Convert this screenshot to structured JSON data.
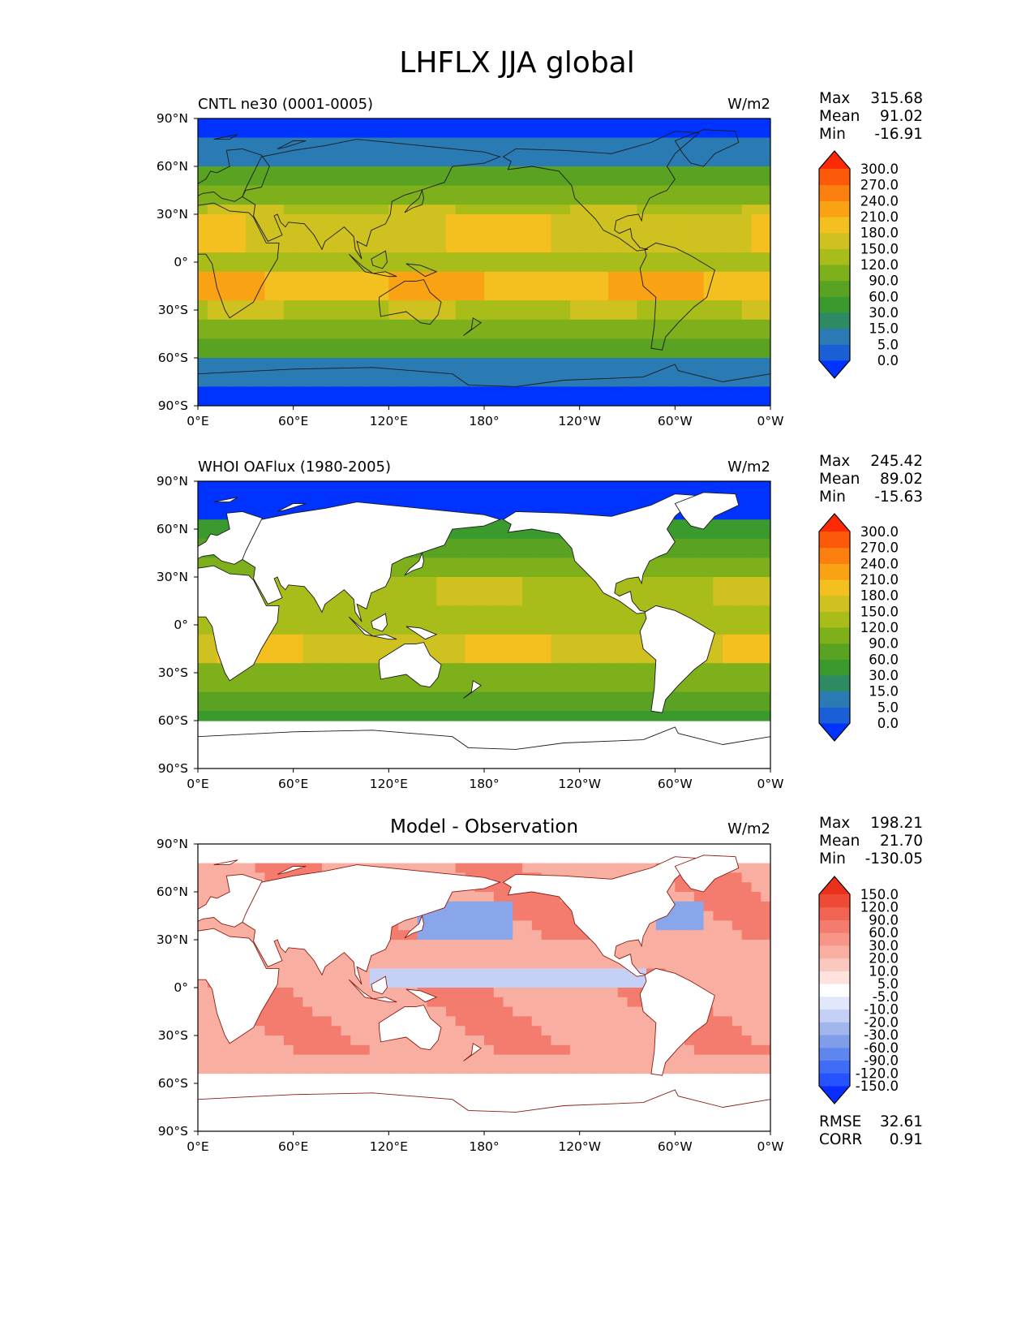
{
  "figure": {
    "title": "LHFLX JJA global"
  },
  "axes": {
    "lon_ticks": [
      "0°E",
      "60°E",
      "120°E",
      "180°",
      "120°W",
      "60°W",
      "0°W"
    ],
    "lat_ticks": [
      "90°N",
      "60°N",
      "30°N",
      "0°",
      "30°S",
      "60°S",
      "90°S"
    ]
  },
  "panels": [
    {
      "title_left": "CNTL ne30 (0001-0005)",
      "title_center": "",
      "units": "W/m2",
      "stats": [
        {
          "label": "Max",
          "value": "315.68"
        },
        {
          "label": "Mean",
          "value": "91.02"
        },
        {
          "label": "Min",
          "value": "-16.91"
        }
      ],
      "colorbar": {
        "labels": [
          "300.0",
          "270.0",
          "240.0",
          "210.0",
          "180.0",
          "150.0",
          "120.0",
          "90.0",
          "60.0",
          "30.0",
          "15.0",
          "5.0",
          "0.0"
        ],
        "colors": [
          "#0033ff",
          "#1a5fd6",
          "#2a7ab3",
          "#2e8a63",
          "#3a9a2e",
          "#5aa322",
          "#7eb01c",
          "#a8bc1a",
          "#cfc11f",
          "#f4c020",
          "#f8a214",
          "#fb8010",
          "#fc5a0a",
          "#fd2a05"
        ]
      }
    },
    {
      "title_left": "WHOI OAFlux (1980-2005)",
      "title_center": "",
      "units": "W/m2",
      "stats": [
        {
          "label": "Max",
          "value": "245.42"
        },
        {
          "label": "Mean",
          "value": "89.02"
        },
        {
          "label": "Min",
          "value": "-15.63"
        }
      ],
      "colorbar": {
        "labels": [
          "300.0",
          "270.0",
          "240.0",
          "210.0",
          "180.0",
          "150.0",
          "120.0",
          "90.0",
          "60.0",
          "30.0",
          "15.0",
          "5.0",
          "0.0"
        ],
        "colors": [
          "#0033ff",
          "#1a5fd6",
          "#2a7ab3",
          "#2e8a63",
          "#3a9a2e",
          "#5aa322",
          "#7eb01c",
          "#a8bc1a",
          "#cfc11f",
          "#f4c020",
          "#f8a214",
          "#fb8010",
          "#fc5a0a",
          "#fd2a05"
        ]
      }
    },
    {
      "title_left": "",
      "title_center": "Model - Observation",
      "units": "W/m2",
      "stats": [
        {
          "label": "Max",
          "value": "198.21"
        },
        {
          "label": "Mean",
          "value": "21.70"
        },
        {
          "label": "Min",
          "value": "-130.05"
        }
      ],
      "colorbar": {
        "labels": [
          "150.0",
          "120.0",
          "90.0",
          "60.0",
          "30.0",
          "20.0",
          "10.0",
          "5.0",
          "-5.0",
          "-10.0",
          "-20.0",
          "-30.0",
          "-60.0",
          "-90.0",
          "-120.0",
          "-150.0"
        ],
        "colors": [
          "#0a2dff",
          "#2453ff",
          "#3f6df5",
          "#5f86ee",
          "#7f9de8",
          "#a1b6ee",
          "#c4d0f5",
          "#e2e8fb",
          "#ffffff",
          "#fde2de",
          "#fbc8bf",
          "#f9aea2",
          "#f79588",
          "#f47c6e",
          "#f16352",
          "#ee4a36",
          "#eb311b"
        ]
      },
      "error_stats": [
        {
          "label": "RMSE",
          "value": "32.61"
        },
        {
          "label": "CORR",
          "value": "0.91"
        }
      ]
    }
  ],
  "fields": {
    "model_colors": [
      "#0033ff",
      "#2a7ab3",
      "#3a9a2e",
      "#5aa322",
      "#7eb01c",
      "#a8bc1a",
      "#cfc11f",
      "#f4c020",
      "#f8a214",
      "#fb8010"
    ],
    "diff_colors": [
      "#4f76f0",
      "#8aa6ea",
      "#c4d0f5",
      "#ffffff",
      "#fbc8bf",
      "#f9aea2",
      "#f47c6e",
      "#ee4a36"
    ]
  }
}
